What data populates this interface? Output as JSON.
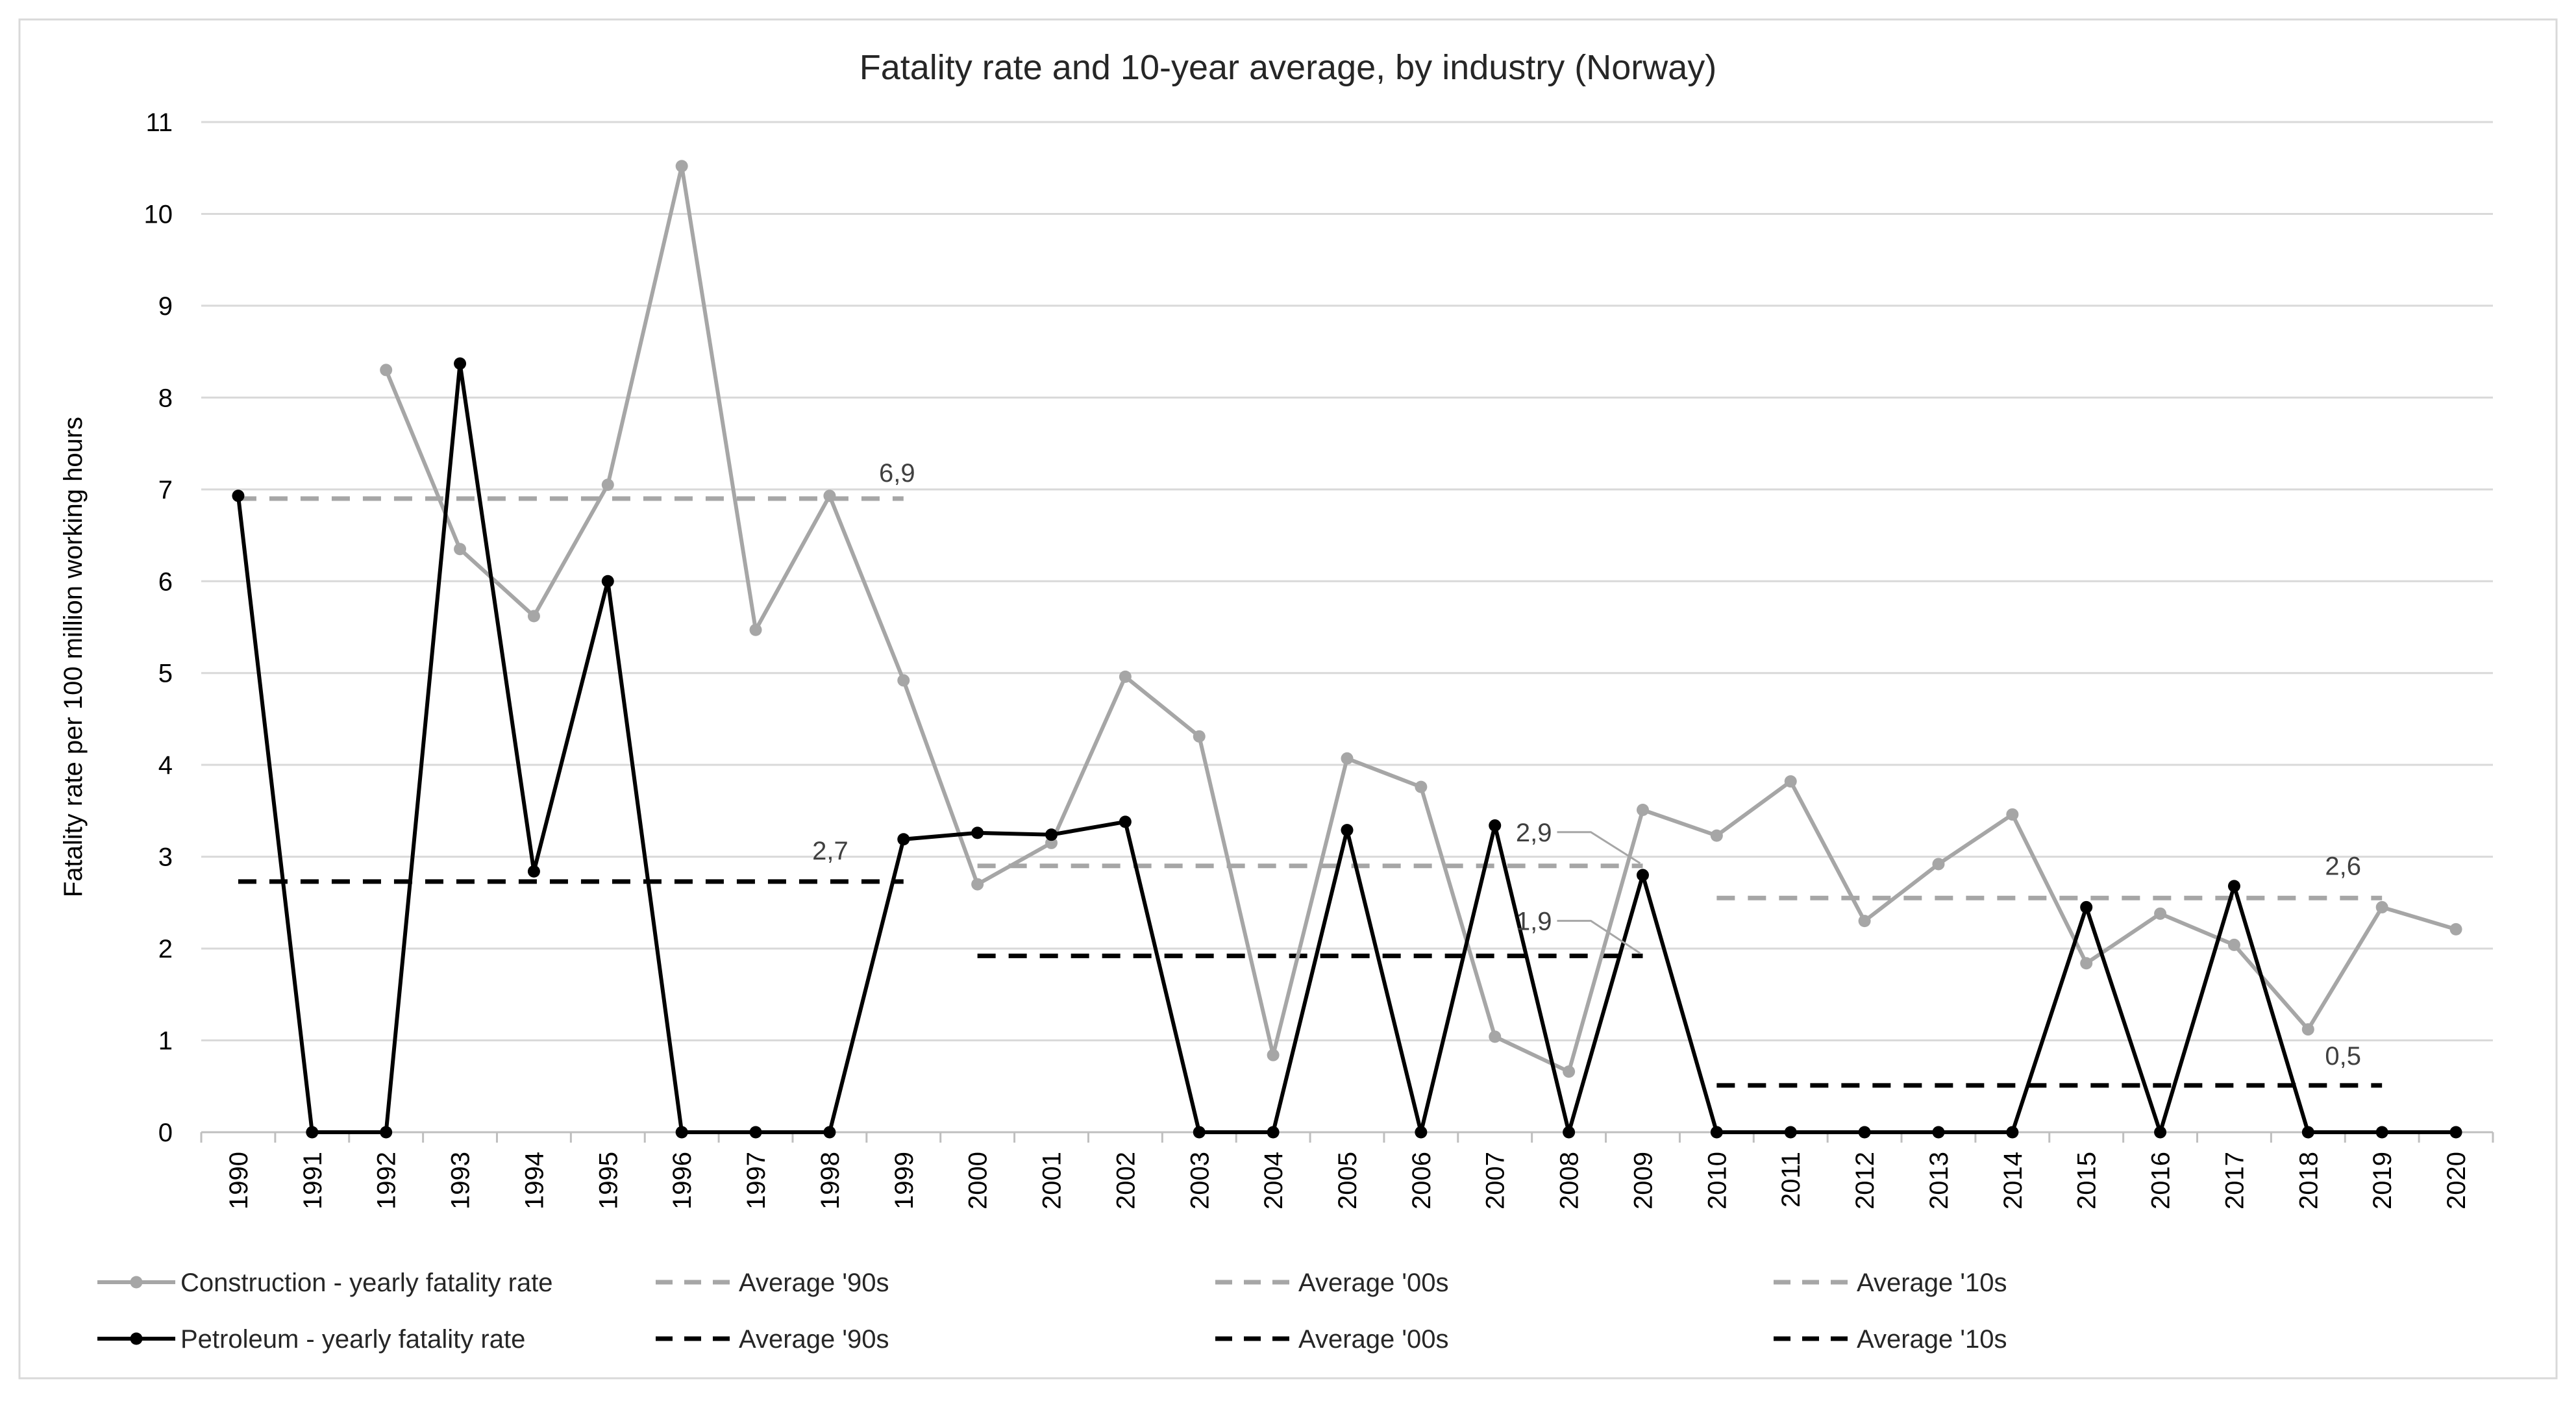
{
  "chart_data": {
    "type": "line",
    "title": "Fatality rate and 10-year average, by industry (Norway)",
    "ylabel": "Fatality rate per 100 million working hours",
    "xlabel": "",
    "ylim": [
      0,
      11
    ],
    "yticks": [
      "0",
      "1",
      "2",
      "3",
      "4",
      "5",
      "6",
      "7",
      "8",
      "9",
      "10",
      "11"
    ],
    "grid": true,
    "legend_position": "bottom",
    "categories": [
      "1990",
      "1991",
      "1992",
      "1993",
      "1994",
      "1995",
      "1996",
      "1997",
      "1998",
      "1999",
      "2000",
      "2001",
      "2002",
      "2003",
      "2004",
      "2005",
      "2006",
      "2007",
      "2008",
      "2009",
      "2010",
      "2011",
      "2012",
      "2013",
      "2014",
      "2015",
      "2016",
      "2017",
      "2018",
      "2019",
      "2020"
    ],
    "series": [
      {
        "name": "Construction - yearly fatality rate",
        "color": "#a6a6a6",
        "values": [
          null,
          null,
          8.3,
          6.35,
          5.62,
          7.05,
          10.52,
          5.47,
          6.93,
          4.92,
          2.7,
          3.15,
          4.96,
          4.31,
          0.84,
          4.07,
          3.76,
          1.04,
          0.66,
          3.51,
          3.23,
          3.82,
          2.3,
          2.92,
          3.46,
          1.84,
          2.38,
          2.04,
          1.12,
          2.45,
          2.21
        ]
      },
      {
        "name": "Petroleum - yearly fatality rate",
        "color": "#000000",
        "values": [
          6.93,
          0,
          0,
          8.37,
          2.84,
          6.0,
          0,
          0,
          0,
          3.19,
          3.26,
          3.24,
          3.38,
          0,
          0,
          3.29,
          0,
          3.34,
          0,
          2.8,
          0,
          0,
          0,
          0,
          0,
          2.45,
          0,
          2.68,
          0,
          0,
          0
        ]
      }
    ],
    "averages": [
      {
        "name": "Average '90s",
        "series": "Construction",
        "color": "#a6a6a6",
        "from": "1990",
        "to": "1999",
        "value": 6.9,
        "label": "6,9"
      },
      {
        "name": "Average '00s",
        "series": "Construction",
        "color": "#a6a6a6",
        "from": "2000",
        "to": "2009",
        "value": 2.9,
        "label": "2,9"
      },
      {
        "name": "Average '10s",
        "series": "Construction",
        "color": "#a6a6a6",
        "from": "2010",
        "to": "2019",
        "value": 2.55,
        "label": "2,6"
      },
      {
        "name": "Average '90s",
        "series": "Petroleum",
        "color": "#000000",
        "from": "1990",
        "to": "1999",
        "value": 2.73,
        "label": "2,7"
      },
      {
        "name": "Average '00s",
        "series": "Petroleum",
        "color": "#000000",
        "from": "2000",
        "to": "2009",
        "value": 1.92,
        "label": "1,9"
      },
      {
        "name": "Average '10s",
        "series": "Petroleum",
        "color": "#000000",
        "from": "2010",
        "to": "2019",
        "value": 0.51,
        "label": "0,5"
      }
    ]
  }
}
